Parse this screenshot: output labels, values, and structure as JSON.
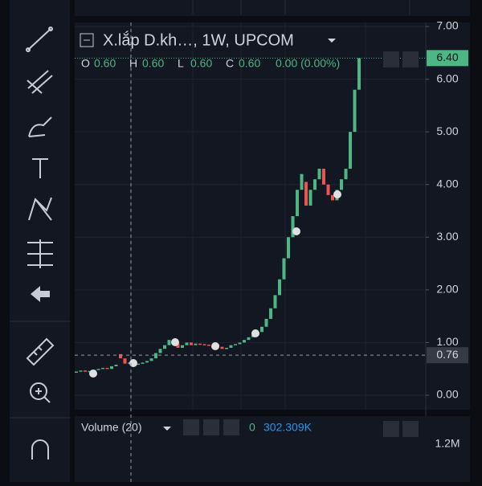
{
  "chart_data": {
    "type": "candlestick",
    "title": "X.lắp D.kh…, 1W, UPCOM",
    "legend": [
      {
        "key": "O",
        "value": "0.60"
      },
      {
        "key": "H",
        "value": "0.60"
      },
      {
        "key": "L",
        "value": "0.60"
      },
      {
        "key": "C",
        "value": "0.60"
      }
    ],
    "change": "0.00 (0.00%)",
    "open": [
      0.44,
      0.45,
      0.47,
      0.45,
      0.46,
      0.48,
      0.5,
      0.52,
      0.5,
      0.55,
      0.78,
      0.7,
      0.6,
      0.62,
      0.58,
      0.6,
      0.62,
      0.65,
      0.7,
      0.8,
      0.88,
      0.95,
      1.05,
      0.98,
      0.9,
      0.95,
      1.0,
      0.95,
      0.98,
      0.97,
      0.96,
      0.95,
      0.97,
      0.92,
      0.88,
      0.9,
      0.95,
      0.97,
      1.0,
      1.05,
      1.1,
      1.15,
      1.2,
      1.3,
      1.45,
      1.65,
      1.9,
      2.2,
      2.6,
      3.0,
      3.4,
      3.9,
      4.05,
      3.6,
      3.9,
      4.1,
      4.3,
      4.0,
      3.8,
      3.7,
      3.9,
      4.1,
      4.3,
      5.0,
      5.8
    ],
    "close": [
      0.45,
      0.47,
      0.45,
      0.46,
      0.48,
      0.5,
      0.52,
      0.5,
      0.55,
      0.58,
      0.7,
      0.6,
      0.62,
      0.58,
      0.6,
      0.62,
      0.65,
      0.7,
      0.8,
      0.88,
      0.95,
      1.05,
      0.98,
      0.9,
      0.95,
      1.0,
      0.95,
      0.98,
      0.97,
      0.96,
      0.95,
      0.97,
      0.92,
      0.88,
      0.9,
      0.95,
      0.97,
      1.0,
      1.05,
      1.1,
      1.15,
      1.2,
      1.3,
      1.45,
      1.65,
      1.9,
      2.2,
      2.6,
      3.0,
      3.4,
      3.9,
      4.2,
      3.6,
      3.9,
      4.1,
      4.3,
      4.0,
      3.8,
      3.7,
      3.9,
      4.1,
      4.3,
      5.0,
      5.8,
      6.4
    ],
    "colors": {
      "up": "#4cb782",
      "down": "#ef5350"
    },
    "ylim": [
      0,
      7
    ],
    "yticks": [
      {
        "value": 0,
        "label": "0.00"
      },
      {
        "value": 1,
        "label": "1.00"
      },
      {
        "value": 2,
        "label": "2.00"
      },
      {
        "value": 3,
        "label": "3.00"
      },
      {
        "value": 4,
        "label": "4.00"
      },
      {
        "value": 5,
        "label": "5.00"
      },
      {
        "value": 6,
        "label": "6.00"
      },
      {
        "value": 7,
        "label": "7.00"
      }
    ],
    "last_price": {
      "value": 6.4,
      "label": "6.40"
    },
    "crosshair": {
      "value": 0.76,
      "label": "0.76"
    },
    "volume": {
      "title": "Volume (20)",
      "zero": "0",
      "value": "302.309K",
      "tick": "1.2M"
    }
  }
}
